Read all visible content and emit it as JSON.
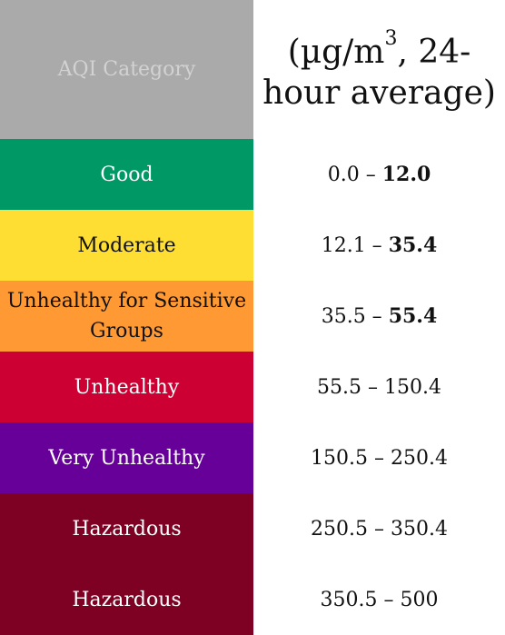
{
  "header": {
    "category_label": "AQI Category",
    "value_prefix": "(µg/m",
    "value_superscript": "3",
    "value_suffix_line1": ", 24-",
    "value_line2": "hour average)"
  },
  "rows": [
    {
      "category": "Good",
      "low": "0.0",
      "dash": " – ",
      "high": "12.0",
      "high_bold": true,
      "bg": "#009966",
      "fg": "#ffffff"
    },
    {
      "category": "Moderate",
      "low": "12.1",
      "dash": " – ",
      "high": "35.4",
      "high_bold": true,
      "bg": "#ffde33",
      "fg": "#111111"
    },
    {
      "category": "Unhealthy for Sensitive Groups",
      "low": "35.5",
      "dash": " – ",
      "high": "55.4",
      "high_bold": true,
      "bg": "#ff9933",
      "fg": "#111111"
    },
    {
      "category": "Unhealthy",
      "low": "55.5",
      "dash": " – ",
      "high": "150.4",
      "high_bold": false,
      "bg": "#cc0033",
      "fg": "#ffffff"
    },
    {
      "category": "Very Unhealthy",
      "low": "150.5",
      "dash": " – ",
      "high": "250.4",
      "high_bold": false,
      "bg": "#660099",
      "fg": "#ffffff"
    },
    {
      "category": "Hazardous",
      "low": "250.5",
      "dash": " – ",
      "high": "350.4",
      "high_bold": false,
      "bg": "#7e0023",
      "fg": "#ffffff"
    },
    {
      "category": "Hazardous",
      "low": "350.5",
      "dash": " – ",
      "high": "500",
      "high_bold": false,
      "bg": "#7e0023",
      "fg": "#ffffff"
    }
  ]
}
